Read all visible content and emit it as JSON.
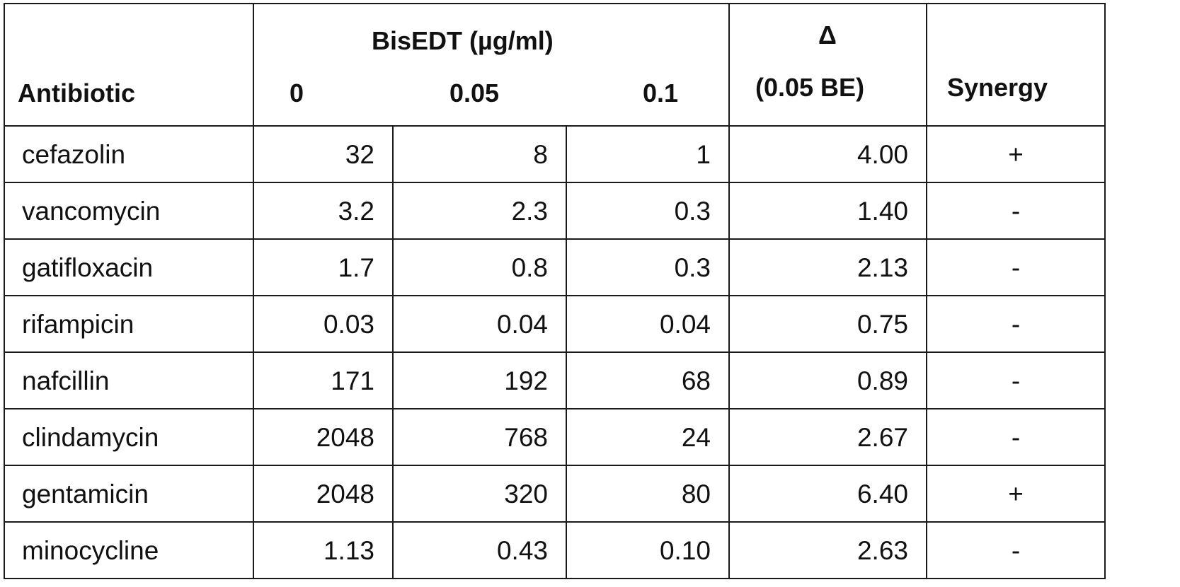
{
  "table": {
    "header": {
      "antibiotic": "Antibiotic",
      "bisedt_group": "BisEDT (µg/ml)",
      "conc_0": "0",
      "conc_005": "0.05",
      "conc_01": "0.1",
      "delta_symbol": "Δ",
      "delta_sub": "(0.05 BE)",
      "synergy": "Synergy"
    },
    "rows": [
      {
        "antibiotic": "cefazolin",
        "c0": "32",
        "c005": "8",
        "c01": "1",
        "delta": "4.00",
        "synergy": "+"
      },
      {
        "antibiotic": "vancomycin",
        "c0": "3.2",
        "c005": "2.3",
        "c01": "0.3",
        "delta": "1.40",
        "synergy": "-"
      },
      {
        "antibiotic": "gatifloxacin",
        "c0": "1.7",
        "c005": "0.8",
        "c01": "0.3",
        "delta": "2.13",
        "synergy": "-"
      },
      {
        "antibiotic": "rifampicin",
        "c0": "0.03",
        "c005": "0.04",
        "c01": "0.04",
        "delta": "0.75",
        "synergy": "-"
      },
      {
        "antibiotic": "nafcillin",
        "c0": "171",
        "c005": "192",
        "c01": "68",
        "delta": "0.89",
        "synergy": "-"
      },
      {
        "antibiotic": "clindamycin",
        "c0": "2048",
        "c005": "768",
        "c01": "24",
        "delta": "2.67",
        "synergy": "-"
      },
      {
        "antibiotic": "gentamicin",
        "c0": "2048",
        "c005": "320",
        "c01": "80",
        "delta": "6.40",
        "synergy": "+"
      },
      {
        "antibiotic": "minocycline",
        "c0": "1.13",
        "c005": "0.43",
        "c01": "0.10",
        "delta": "2.63",
        "synergy": "-"
      }
    ]
  }
}
